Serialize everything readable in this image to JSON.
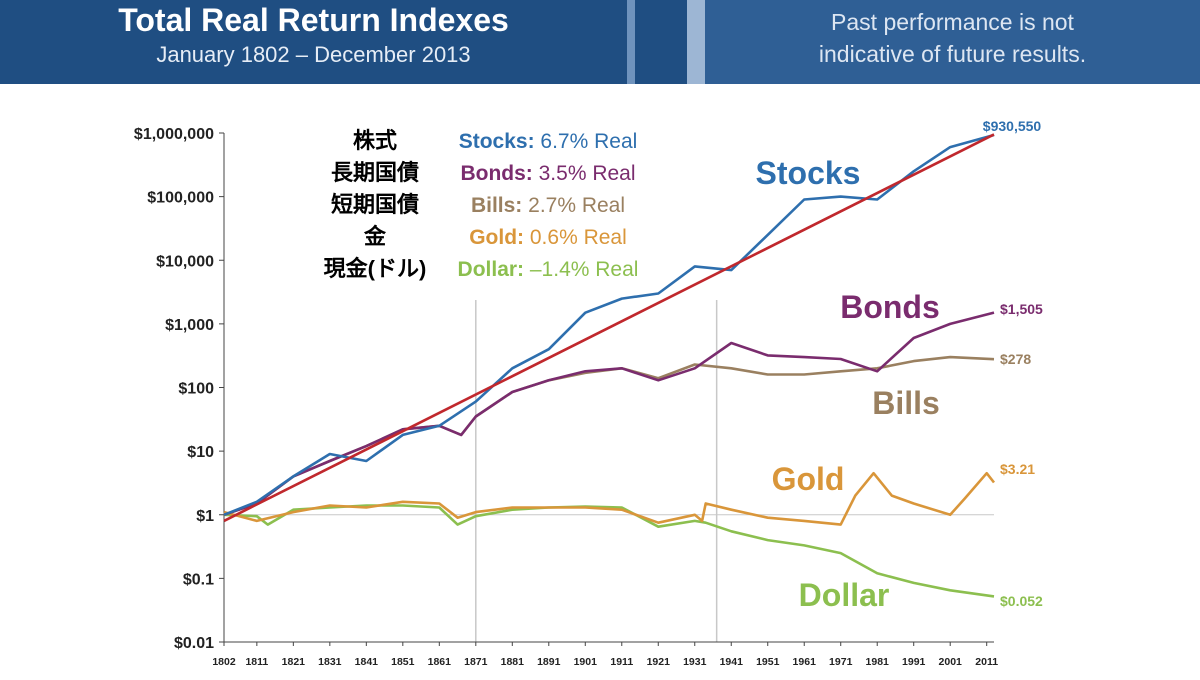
{
  "header": {
    "title": "Total Real Return Indexes",
    "subtitle": "January 1802 – December 2013",
    "disclaimer_line1": "Past performance is not",
    "disclaimer_line2": "indicative of future results."
  },
  "colors": {
    "header_bg": "#1f4e82",
    "stocks": "#2e6fae",
    "bonds": "#7a2c6e",
    "bills": "#9a8060",
    "gold": "#d9963a",
    "dollar": "#8cbf4f",
    "trend": "#c0282d"
  },
  "chart_data": {
    "type": "line",
    "y_scale": "log",
    "ylim": [
      0.01,
      1000000
    ],
    "xlim": [
      1802,
      2013
    ],
    "x_tick_labels": [
      "1802",
      "1811",
      "1821",
      "1831",
      "1841",
      "1851",
      "1861",
      "1871",
      "1881",
      "1891",
      "1901",
      "1911",
      "1921",
      "1931",
      "1941",
      "1951",
      "1961",
      "1971",
      "1981",
      "1991",
      "2001",
      "2011"
    ],
    "y_tick_labels": [
      "$1,000,000",
      "$100,000",
      "$10,000",
      "$1,000",
      "$100",
      "$10",
      "$1",
      "$0.1",
      "$0.01"
    ],
    "vertical_gridlines": [
      1871,
      1937
    ],
    "legend": [
      {
        "jp": "株式",
        "label": "Stocks:",
        "value": "6.7% Real"
      },
      {
        "jp": "長期国債",
        "label": "Bonds:",
        "value": "3.5% Real"
      },
      {
        "jp": "短期国債",
        "label": "Bills:",
        "value": "2.7% Real"
      },
      {
        "jp": "金",
        "label": "Gold:",
        "value": "0.6% Real"
      },
      {
        "jp": "現金(ドル)",
        "label": "Dollar:",
        "value": "–1.4% Real"
      }
    ],
    "series": [
      {
        "name": "Stocks",
        "end_label": "$930,550",
        "x": [
          1802,
          1811,
          1821,
          1831,
          1841,
          1851,
          1861,
          1871,
          1881,
          1891,
          1901,
          1911,
          1921,
          1931,
          1941,
          1951,
          1961,
          1971,
          1981,
          1991,
          2001,
          2013
        ],
        "y": [
          1,
          1.6,
          4,
          9,
          7,
          18,
          25,
          60,
          200,
          400,
          1500,
          2500,
          3000,
          8000,
          7000,
          25000,
          90000,
          100000,
          90000,
          250000,
          600000,
          930550
        ]
      },
      {
        "name": "Bonds",
        "end_label": "$1,505",
        "x": [
          1802,
          1811,
          1821,
          1831,
          1841,
          1851,
          1861,
          1867,
          1871,
          1881,
          1891,
          1901,
          1911,
          1921,
          1931,
          1941,
          1951,
          1961,
          1971,
          1981,
          1991,
          2001,
          2013
        ],
        "y": [
          1,
          1.5,
          4,
          7,
          12,
          22,
          25,
          18,
          35,
          85,
          130,
          180,
          200,
          130,
          200,
          500,
          320,
          300,
          280,
          180,
          600,
          1000,
          1505
        ]
      },
      {
        "name": "Bills",
        "end_label": "$278",
        "x": [
          1802,
          1811,
          1821,
          1831,
          1841,
          1851,
          1861,
          1867,
          1871,
          1881,
          1891,
          1901,
          1911,
          1921,
          1931,
          1941,
          1951,
          1961,
          1971,
          1981,
          1991,
          2001,
          2013
        ],
        "y": [
          1,
          1.5,
          4,
          7,
          12,
          22,
          25,
          18,
          35,
          85,
          130,
          170,
          200,
          140,
          230,
          200,
          160,
          160,
          180,
          200,
          260,
          300,
          278
        ]
      },
      {
        "name": "Gold",
        "end_label": "$3.21",
        "x": [
          1802,
          1811,
          1821,
          1831,
          1841,
          1851,
          1861,
          1866,
          1871,
          1881,
          1891,
          1901,
          1911,
          1921,
          1931,
          1933,
          1934,
          1941,
          1951,
          1961,
          1971,
          1975,
          1980,
          1985,
          1991,
          2001,
          2005,
          2011,
          2013
        ],
        "y": [
          1.1,
          0.8,
          1.1,
          1.4,
          1.3,
          1.6,
          1.5,
          0.9,
          1.1,
          1.3,
          1.3,
          1.3,
          1.2,
          0.75,
          1.0,
          0.8,
          1.5,
          1.2,
          0.9,
          0.8,
          0.7,
          2.0,
          4.5,
          2.0,
          1.5,
          1.0,
          1.8,
          4.5,
          3.21
        ]
      },
      {
        "name": "Dollar",
        "end_label": "$0.052",
        "x": [
          1802,
          1811,
          1814,
          1821,
          1831,
          1841,
          1851,
          1861,
          1866,
          1871,
          1881,
          1891,
          1901,
          1911,
          1921,
          1931,
          1934,
          1941,
          1951,
          1961,
          1971,
          1981,
          1991,
          2001,
          2013
        ],
        "y": [
          1,
          0.95,
          0.7,
          1.2,
          1.3,
          1.4,
          1.4,
          1.3,
          0.7,
          0.95,
          1.2,
          1.3,
          1.35,
          1.3,
          0.65,
          0.8,
          0.75,
          0.55,
          0.4,
          0.33,
          0.25,
          0.12,
          0.085,
          0.065,
          0.052
        ]
      }
    ],
    "trend": {
      "x": [
        1802,
        2013
      ],
      "y": [
        0.8,
        950000
      ]
    }
  }
}
